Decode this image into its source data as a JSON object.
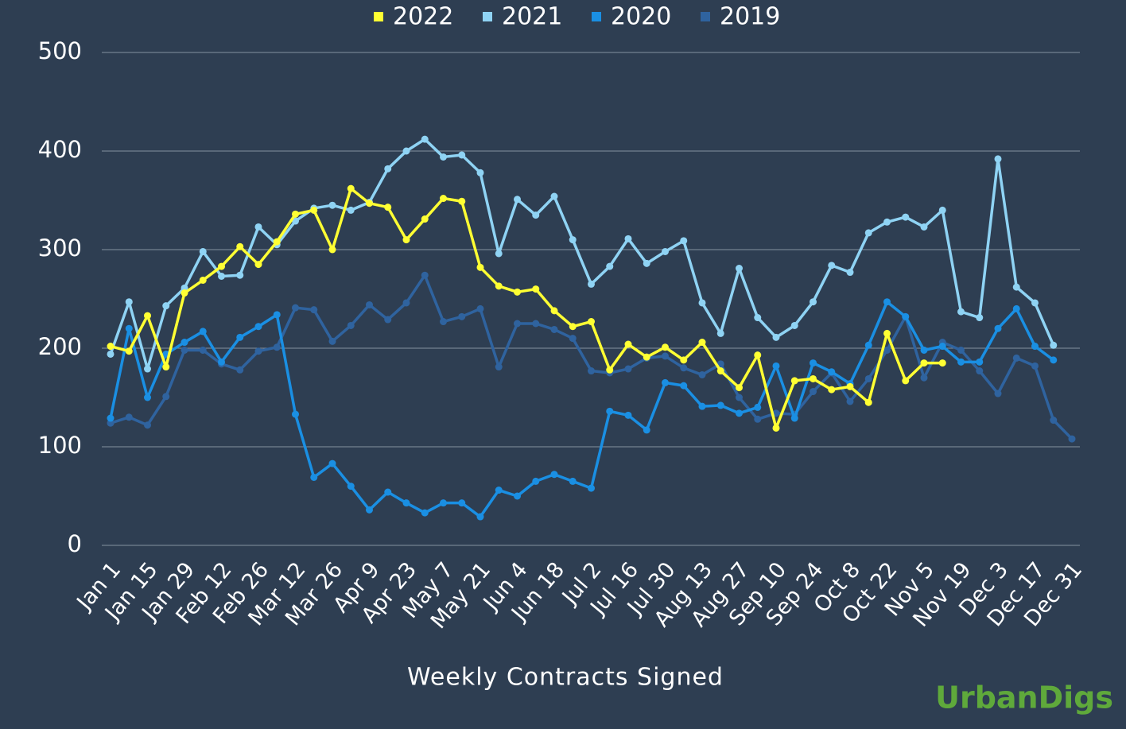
{
  "chart_data": {
    "type": "line",
    "x_label": "Weekly Contracts Signed",
    "watermark": "UrbanDigs",
    "categories": [
      "Jan 1",
      null,
      "Jan 15",
      null,
      "Jan 29",
      null,
      "Feb 12",
      null,
      "Feb 26",
      null,
      "Mar 12",
      null,
      "Mar 26",
      null,
      "Apr 9",
      null,
      "Apr 23",
      null,
      "May 7",
      null,
      "May 21",
      null,
      "Jun 4",
      null,
      "Jun 18",
      null,
      "Jul 2",
      null,
      "Jul 16",
      null,
      "Jul 30",
      null,
      "Aug 13",
      null,
      "Aug 27",
      null,
      "Sep 10",
      null,
      "Sep 24",
      null,
      "Oct 8",
      null,
      "Oct 22",
      null,
      "Nov 5",
      null,
      "Nov 19",
      null,
      "Dec 3",
      null,
      "Dec 17",
      null,
      "Dec 31"
    ],
    "series": [
      {
        "name": "2022",
        "color": "#ffff33",
        "values": [
          202,
          197,
          233,
          181,
          256,
          269,
          283,
          303,
          285,
          308,
          336,
          340,
          300,
          362,
          347,
          343,
          310,
          331,
          352,
          349,
          282,
          263,
          257,
          260,
          238,
          222,
          227,
          178,
          204,
          191,
          201,
          188,
          206,
          177,
          160,
          193,
          119,
          167,
          169,
          158,
          161,
          145,
          215,
          167,
          185,
          185,
          null,
          null,
          null,
          null,
          null,
          null,
          null
        ]
      },
      {
        "name": "2021",
        "color": "#8fd3f4",
        "values": [
          194,
          247,
          179,
          243,
          261,
          298,
          273,
          274,
          323,
          305,
          329,
          342,
          345,
          340,
          348,
          382,
          400,
          412,
          394,
          396,
          378,
          296,
          351,
          335,
          354,
          310,
          265,
          283,
          311,
          286,
          298,
          309,
          246,
          215,
          281,
          231,
          211,
          223,
          247,
          284,
          277,
          317,
          328,
          333,
          323,
          340,
          237,
          231,
          392,
          262,
          246,
          203,
          null
        ]
      },
      {
        "name": "2020",
        "color": "#1a8fe3",
        "values": [
          129,
          220,
          150,
          194,
          206,
          217,
          186,
          211,
          222,
          234,
          133,
          69,
          83,
          60,
          36,
          54,
          43,
          33,
          43,
          43,
          29,
          56,
          50,
          65,
          72,
          65,
          58,
          136,
          132,
          117,
          165,
          162,
          141,
          142,
          134,
          140,
          182,
          129,
          185,
          176,
          164,
          203,
          247,
          232,
          198,
          202,
          186,
          186,
          220,
          240,
          202,
          188,
          null
        ]
      },
      {
        "name": "2019",
        "color": "#2f639f",
        "values": [
          124,
          130,
          122,
          151,
          198,
          198,
          184,
          178,
          197,
          201,
          241,
          239,
          207,
          223,
          244,
          229,
          246,
          274,
          227,
          232,
          240,
          181,
          225,
          225,
          219,
          210,
          177,
          175,
          179,
          190,
          192,
          180,
          173,
          184,
          150,
          128,
          134,
          133,
          156,
          175,
          146,
          169,
          198,
          232,
          170,
          206,
          198,
          177,
          154,
          190,
          182,
          127,
          108
        ]
      }
    ],
    "ylim": [
      0,
      500
    ],
    "yticks": [
      0,
      100,
      200,
      300,
      400,
      500
    ],
    "grid": true,
    "legend": "top"
  }
}
